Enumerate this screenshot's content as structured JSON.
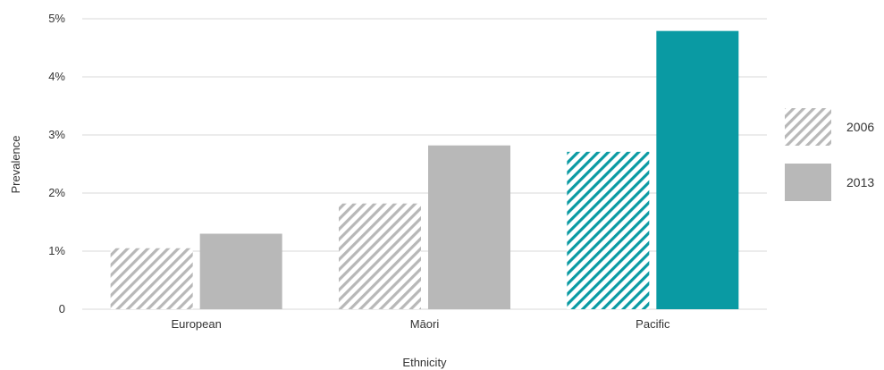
{
  "chart_data": {
    "type": "bar",
    "xlabel": "Ethnicity",
    "ylabel": "Prevalence",
    "categories": [
      "European",
      "Māori",
      "Pacific"
    ],
    "series": [
      {
        "name": "2006",
        "values": [
          1.05,
          1.82,
          2.71
        ]
      },
      {
        "name": "2013",
        "values": [
          1.3,
          2.82,
          4.79
        ]
      }
    ],
    "ylim": [
      0,
      5
    ],
    "yticks": [
      {
        "value": 0,
        "label": "0"
      },
      {
        "value": 1,
        "label": "1%"
      },
      {
        "value": 2,
        "label": "2%"
      },
      {
        "value": 3,
        "label": "3%"
      },
      {
        "value": 4,
        "label": "4%"
      },
      {
        "value": 5,
        "label": "5%"
      }
    ],
    "grid": true,
    "legend_position": "right",
    "colors": {
      "gray": "#b8b8b8",
      "teal": "#0a9aa3",
      "gridline": "#d9d9d9"
    },
    "pattern_note_series": "2006",
    "highlight_category": "Pacific"
  }
}
